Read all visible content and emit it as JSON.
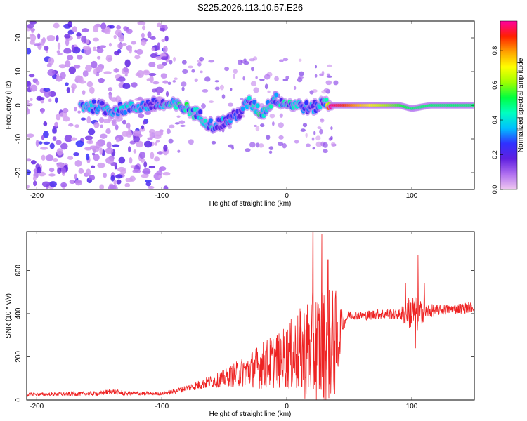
{
  "figure": {
    "title": "S225.2026.113.10.57.E26"
  },
  "chart_data": [
    {
      "type": "heatmap",
      "name": "spectrogram",
      "xlabel": "Height of straight line (km)",
      "ylabel": "Frequency (Hz)",
      "xlim": [
        -208,
        150
      ],
      "ylim": [
        -25,
        25
      ],
      "xticks": [
        -200,
        -100,
        0,
        100
      ],
      "yticks": [
        -20,
        -10,
        0,
        10,
        20
      ],
      "colorbar": {
        "label": "Normalized spectral amplitude",
        "range": [
          0,
          0.97
        ],
        "ticks": [
          0.0,
          0.2,
          0.4,
          0.6,
          0.8
        ],
        "colors": [
          "#f0c8f0",
          "#b070f0",
          "#6020e0",
          "#3030ff",
          "#00c0ff",
          "#00ffc0",
          "#00ff40",
          "#a0ff00",
          "#ffff00",
          "#ffa000",
          "#ff2000",
          "#ff00a0"
        ]
      },
      "noise_region_km": [
        -208,
        -95
      ],
      "signal_track": [
        {
          "x": -165,
          "f": 0.0,
          "a": 0.35
        },
        {
          "x": -150,
          "f": -0.5,
          "a": 0.4
        },
        {
          "x": -140,
          "f": -1.5,
          "a": 0.35
        },
        {
          "x": -105,
          "f": 0.3,
          "a": 0.3
        },
        {
          "x": -90,
          "f": 0.0,
          "a": 0.4
        },
        {
          "x": -80,
          "f": -1.0,
          "a": 0.45
        },
        {
          "x": -70,
          "f": -3.0,
          "a": 0.35
        },
        {
          "x": -60,
          "f": -6.0,
          "a": 0.35
        },
        {
          "x": -50,
          "f": -5.0,
          "a": 0.3
        },
        {
          "x": -40,
          "f": -3.0,
          "a": 0.25
        },
        {
          "x": -30,
          "f": 1.0,
          "a": 0.35
        },
        {
          "x": -20,
          "f": -2.5,
          "a": 0.45
        },
        {
          "x": -10,
          "f": 2.0,
          "a": 0.35
        },
        {
          "x": 0,
          "f": 0.5,
          "a": 0.4
        },
        {
          "x": 10,
          "f": 0.0,
          "a": 0.35
        },
        {
          "x": 20,
          "f": -1.0,
          "a": 0.3
        },
        {
          "x": 30,
          "f": 1.0,
          "a": 0.35
        },
        {
          "x": 36,
          "f": 0.0,
          "a": 0.95
        },
        {
          "x": 60,
          "f": 0.0,
          "a": 0.75
        },
        {
          "x": 90,
          "f": 0.0,
          "a": 0.55
        },
        {
          "x": 100,
          "f": -1.0,
          "a": 0.5
        },
        {
          "x": 115,
          "f": 0.0,
          "a": 0.5
        },
        {
          "x": 150,
          "f": 0.0,
          "a": 0.5
        }
      ]
    },
    {
      "type": "line",
      "name": "snr",
      "xlabel": "Height of straight line (km)",
      "ylabel": "SNR (10 * v/v)",
      "xlim": [
        -208,
        150
      ],
      "ylim": [
        0,
        780
      ],
      "xticks": [
        -200,
        -100,
        0,
        100
      ],
      "yticks": [
        0,
        200,
        400,
        600
      ],
      "series": [
        {
          "name": "SNR",
          "color": "#ee2222",
          "envelope": {
            "x": [
              -208,
              -150,
              -140,
              -130,
              -100,
              -90,
              -80,
              -70,
              -60,
              -50,
              -40,
              -30,
              -20,
              -10,
              0,
              10,
              20,
              30,
              40,
              45,
              50,
              60,
              70,
              80,
              90,
              95,
              100,
              105,
              110,
              120,
              130,
              150
            ],
            "base": [
              25,
              30,
              40,
              30,
              30,
              40,
              55,
              70,
              85,
              100,
              120,
              140,
              160,
              180,
              200,
              220,
              240,
              250,
              260,
              360,
              395,
              390,
              395,
              400,
              395,
              400,
              410,
              390,
              410,
              415,
              420,
              430
            ],
            "amplitude": [
              8,
              10,
              14,
              10,
              8,
              12,
              15,
              22,
              30,
              40,
              60,
              80,
              110,
              130,
              150,
              200,
              260,
              280,
              250,
              40,
              20,
              20,
              25,
              25,
              25,
              60,
              90,
              80,
              40,
              25,
              25,
              25
            ]
          },
          "peaks": [
            {
              "x": 21,
              "y": 780
            },
            {
              "x": 28,
              "y": 770
            },
            {
              "x": 33,
              "y": 650
            },
            {
              "x": 105,
              "y": 670
            },
            {
              "x": 95,
              "y": 540
            },
            {
              "x": 110,
              "y": 540
            },
            {
              "x": 103,
              "y": 240
            }
          ]
        }
      ]
    }
  ]
}
